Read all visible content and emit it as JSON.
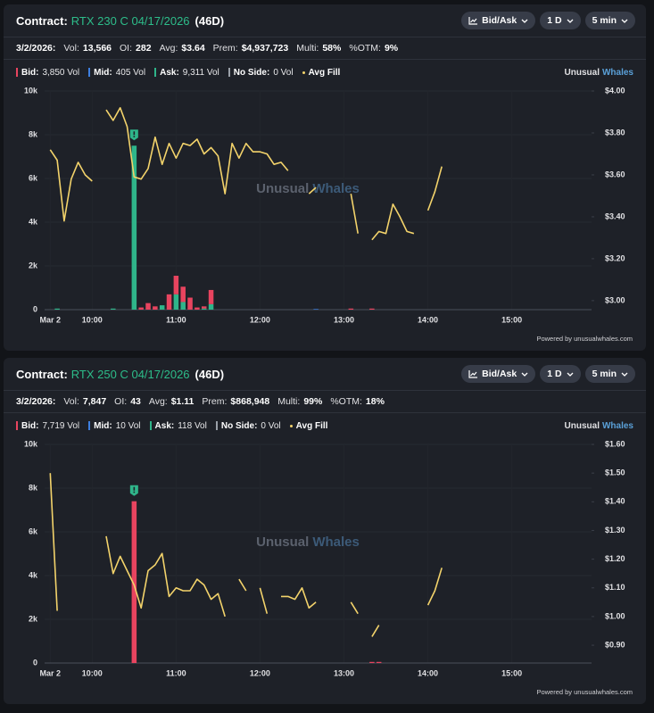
{
  "panels": [
    {
      "header": {
        "label": "Contract:",
        "contract": "RTX 230 C 04/17/2026",
        "dte": "(46D)",
        "buttons": [
          "Bid/Ask",
          "1 D",
          "5 min"
        ]
      },
      "stats": [
        {
          "label": "3/2/2026:"
        },
        {
          "label": "Vol:",
          "value": "13,566"
        },
        {
          "label": "OI:",
          "value": "282"
        },
        {
          "label": "Avg:",
          "value": "$3.64"
        },
        {
          "label": "Prem:",
          "value": "$4,937,723"
        },
        {
          "label": "Multi:",
          "value": "58%"
        },
        {
          "label": "%OTM:",
          "value": "9%"
        }
      ],
      "brand": [
        "Unusual",
        "Whales"
      ],
      "footer": "Powered by unusualwhales.com"
    },
    {
      "header": {
        "label": "Contract:",
        "contract": "RTX 250 C 04/17/2026",
        "dte": "(46D)",
        "buttons": [
          "Bid/Ask",
          "1 D",
          "5 min"
        ]
      },
      "stats": [
        {
          "label": "3/2/2026:"
        },
        {
          "label": "Vol:",
          "value": "7,847"
        },
        {
          "label": "OI:",
          "value": "43"
        },
        {
          "label": "Avg:",
          "value": "$1.11"
        },
        {
          "label": "Prem:",
          "value": "$868,948"
        },
        {
          "label": "Multi:",
          "value": "99%"
        },
        {
          "label": "%OTM:",
          "value": "18%"
        }
      ],
      "brand": [
        "Unusual",
        "Whales"
      ],
      "footer": "Powered by unusualwhales.com"
    }
  ],
  "chart_data": [
    {
      "type": "combo",
      "legend": [
        {
          "name": "Bid:",
          "value": "3,850 Vol",
          "color": "#e8445f"
        },
        {
          "name": "Mid:",
          "value": "405 Vol",
          "color": "#3d7fe0"
        },
        {
          "name": "Ask:",
          "value": "9,311 Vol",
          "color": "#2fb58a"
        },
        {
          "name": "No Side:",
          "value": "0 Vol",
          "color": "#9aa0a8"
        },
        {
          "name": "Avg Fill",
          "color": "#f3d36b"
        }
      ],
      "xlim": [
        "09:26",
        "15:57"
      ],
      "xticks": [
        {
          "value": "09:30",
          "label": "Mar 2"
        },
        "10:00",
        "11:00",
        "12:00",
        "13:00",
        "14:00",
        "15:00"
      ],
      "ylim": [
        0,
        10000
      ],
      "yticks": [
        0,
        {
          "value": 2000,
          "label": "2k"
        },
        {
          "value": 4000,
          "label": "4k"
        },
        {
          "value": 6000,
          "label": "6k"
        },
        {
          "value": 8000,
          "label": "8k"
        },
        {
          "value": 10000,
          "label": "10k"
        }
      ],
      "y2lim": [
        2.957,
        4.0
      ],
      "y2ticks": [
        {
          "value": 3.0,
          "label": "$3.00"
        },
        {
          "value": 3.2,
          "label": "$3.20"
        },
        {
          "value": 3.4,
          "label": "$3.40"
        },
        {
          "value": 3.6,
          "label": "$3.60"
        },
        {
          "value": 3.8,
          "label": "$3.80"
        },
        {
          "value": 4.0,
          "label": "$4.00"
        }
      ],
      "x": [
        "09:35",
        "10:15",
        "10:30",
        "10:35",
        "10:40",
        "10:45",
        "10:50",
        "10:55",
        "11:00",
        "11:05",
        "11:10",
        "11:15",
        "11:20",
        "11:25",
        "12:40",
        "13:05",
        "13:20"
      ],
      "series": [
        {
          "values": [
            0,
            0,
            0,
            100,
            300,
            150,
            0,
            700,
            850,
            700,
            550,
            100,
            100,
            650,
            0,
            50,
            50
          ]
        },
        {
          "values": [
            0,
            0,
            0,
            0,
            0,
            0,
            0,
            0,
            0,
            0,
            0,
            0,
            0,
            0,
            30,
            0,
            0
          ]
        },
        {
          "values": [
            50,
            50,
            7500,
            0,
            0,
            0,
            200,
            0,
            700,
            350,
            0,
            0,
            50,
            250,
            0,
            0,
            0
          ]
        }
      ],
      "line": {
        "axis": "y2",
        "x": [
          "09:30",
          "09:35",
          "09:40",
          "09:45",
          "09:50",
          "09:55",
          "10:00",
          "10:05",
          "10:10",
          "10:15",
          "10:20",
          "10:25",
          "10:30",
          "10:35",
          "10:40",
          "10:45",
          "10:50",
          "10:55",
          "11:00",
          "11:05",
          "11:10",
          "11:15",
          "11:20",
          "11:25",
          "11:30",
          "11:35",
          "11:40",
          "11:45",
          "11:50",
          "11:55",
          "12:00",
          "12:05",
          "12:10",
          "12:15",
          "12:20",
          "12:25",
          "12:35",
          "12:40",
          "12:45",
          "13:05",
          "13:10",
          "13:15",
          "13:20",
          "13:25",
          "13:30",
          "13:35",
          "13:40",
          "13:45",
          "13:50",
          "13:55",
          "14:00",
          "14:05",
          "14:10"
        ],
        "values": [
          3.72,
          3.67,
          3.38,
          3.58,
          3.66,
          3.6,
          3.57,
          null,
          3.91,
          3.86,
          3.92,
          3.83,
          3.59,
          3.58,
          3.63,
          3.78,
          3.65,
          3.75,
          3.68,
          3.75,
          3.74,
          3.77,
          3.7,
          3.73,
          3.69,
          3.51,
          3.75,
          3.68,
          3.75,
          3.71,
          3.71,
          3.7,
          3.65,
          3.66,
          3.62,
          null,
          3.51,
          3.54,
          null,
          3.51,
          3.32,
          null,
          3.29,
          3.33,
          3.32,
          3.46,
          3.4,
          3.33,
          3.32,
          null,
          3.43,
          3.52,
          3.64
        ]
      }
    },
    {
      "type": "combo",
      "legend": [
        {
          "name": "Bid:",
          "value": "7,719 Vol",
          "color": "#e8445f"
        },
        {
          "name": "Mid:",
          "value": "10 Vol",
          "color": "#3d7fe0"
        },
        {
          "name": "Ask:",
          "value": "118 Vol",
          "color": "#2fb58a"
        },
        {
          "name": "No Side:",
          "value": "0 Vol",
          "color": "#9aa0a8"
        },
        {
          "name": "Avg Fill",
          "color": "#f3d36b"
        }
      ],
      "xlim": [
        "09:26",
        "15:57"
      ],
      "xticks": [
        {
          "value": "09:30",
          "label": "Mar 2"
        },
        "10:00",
        "11:00",
        "12:00",
        "13:00",
        "14:00",
        "15:00"
      ],
      "ylim": [
        0,
        10000
      ],
      "yticks": [
        0,
        {
          "value": 2000,
          "label": "2k"
        },
        {
          "value": 4000,
          "label": "4k"
        },
        {
          "value": 6000,
          "label": "6k"
        },
        {
          "value": 8000,
          "label": "8k"
        },
        {
          "value": 10000,
          "label": "10k"
        }
      ],
      "y2lim": [
        0.838,
        1.6
      ],
      "y2ticks": [
        {
          "value": 0.9,
          "label": "$0.90"
        },
        {
          "value": 1.0,
          "label": "$1.00"
        },
        {
          "value": 1.1,
          "label": "$1.10"
        },
        {
          "value": 1.2,
          "label": "$1.20"
        },
        {
          "value": 1.3,
          "label": "$1.30"
        },
        {
          "value": 1.4,
          "label": "$1.40"
        },
        {
          "value": 1.5,
          "label": "$1.50"
        },
        {
          "value": 1.6,
          "label": "$1.60"
        }
      ],
      "x": [
        "10:30",
        "13:20",
        "13:25"
      ],
      "series": [
        {
          "values": [
            7400,
            50,
            50
          ]
        },
        {
          "values": [
            0,
            0,
            0
          ]
        },
        {
          "values": [
            0,
            0,
            0
          ]
        }
      ],
      "line": {
        "axis": "y2",
        "x": [
          "09:30",
          "09:35",
          "09:40",
          "10:10",
          "10:15",
          "10:20",
          "10:25",
          "10:30",
          "10:35",
          "10:40",
          "10:45",
          "10:50",
          "10:55",
          "11:00",
          "11:05",
          "11:10",
          "11:15",
          "11:20",
          "11:25",
          "11:30",
          "11:35",
          "11:40",
          "11:45",
          "11:50",
          "11:55",
          "12:00",
          "12:05",
          "12:10",
          "12:15",
          "12:20",
          "12:25",
          "12:30",
          "12:35",
          "12:40",
          "12:45",
          "13:05",
          "13:10",
          "13:15",
          "13:20",
          "13:25",
          "13:30",
          "14:00",
          "14:05",
          "14:10"
        ],
        "values": [
          1.5,
          1.02,
          null,
          1.28,
          1.15,
          1.21,
          1.16,
          1.11,
          1.03,
          1.16,
          1.18,
          1.22,
          1.07,
          1.1,
          1.09,
          1.09,
          1.13,
          1.11,
          1.06,
          1.08,
          1.0,
          null,
          1.13,
          1.09,
          null,
          1.1,
          1.01,
          null,
          1.07,
          1.07,
          1.06,
          1.1,
          1.03,
          1.05,
          null,
          1.05,
          1.01,
          null,
          0.93,
          0.97,
          null,
          1.04,
          1.09,
          1.17
        ]
      }
    }
  ]
}
